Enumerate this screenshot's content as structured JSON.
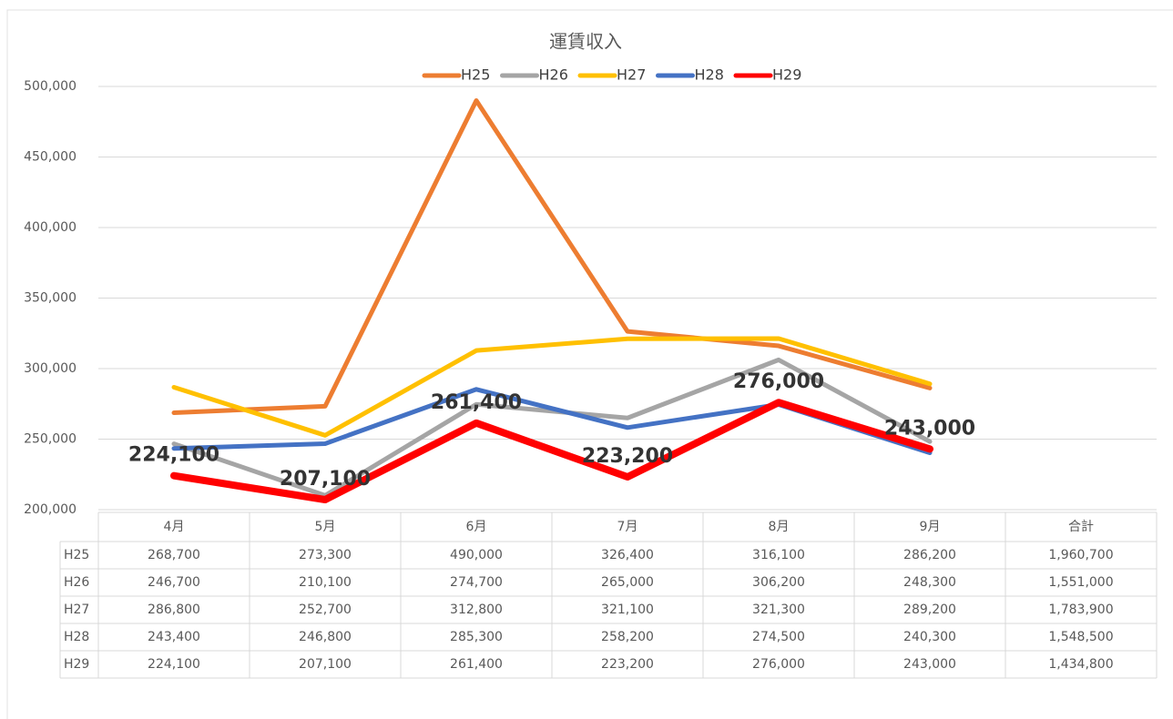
{
  "chart_data": {
    "type": "line",
    "title": "運賃収入",
    "categories": [
      "4月",
      "5月",
      "6月",
      "7月",
      "8月",
      "9月"
    ],
    "total_header": "合計",
    "ylim": [
      200000,
      500000
    ],
    "yticks": [
      {
        "value": 200000,
        "label": "200,000"
      },
      {
        "value": 250000,
        "label": "250,000"
      },
      {
        "value": 300000,
        "label": "300,000"
      },
      {
        "value": 350000,
        "label": "350,000"
      },
      {
        "value": 400000,
        "label": "400,000"
      },
      {
        "value": 450000,
        "label": "450,000"
      },
      {
        "value": 500000,
        "label": "500,000"
      }
    ],
    "grid": true,
    "legend": "top",
    "series": [
      {
        "name": "H25",
        "color": "#ed7d31",
        "values": [
          268700,
          273300,
          490000,
          326400,
          316100,
          286200
        ],
        "value_labels": [
          "268,700",
          "273,300",
          "490,000",
          "326,400",
          "316,100",
          "286,200"
        ],
        "total": 1960700,
        "total_label": "1,960,700"
      },
      {
        "name": "H26",
        "color": "#a5a5a5",
        "values": [
          246700,
          210100,
          274700,
          265000,
          306200,
          248300
        ],
        "value_labels": [
          "246,700",
          "210,100",
          "274,700",
          "265,000",
          "306,200",
          "248,300"
        ],
        "total": 1551000,
        "total_label": "1,551,000"
      },
      {
        "name": "H27",
        "color": "#ffc000",
        "values": [
          286800,
          252700,
          312800,
          321100,
          321300,
          289200
        ],
        "value_labels": [
          "286,800",
          "252,700",
          "312,800",
          "321,100",
          "321,300",
          "289,200"
        ],
        "total": 1783900,
        "total_label": "1,783,900"
      },
      {
        "name": "H28",
        "color": "#4472c4",
        "values": [
          243400,
          246800,
          285300,
          258200,
          274500,
          240300
        ],
        "value_labels": [
          "243,400",
          "246,800",
          "285,300",
          "258,200",
          "274,500",
          "240,300"
        ],
        "total": 1548500,
        "total_label": "1,548,500"
      },
      {
        "name": "H29",
        "color": "#ff0000",
        "values": [
          224100,
          207100,
          261400,
          223200,
          276000,
          243000
        ],
        "value_labels": [
          "224,100",
          "207,100",
          "261,400",
          "223,200",
          "276,000",
          "243,000"
        ],
        "total": 1434800,
        "total_label": "1,434,800",
        "data_labels": true
      }
    ]
  }
}
